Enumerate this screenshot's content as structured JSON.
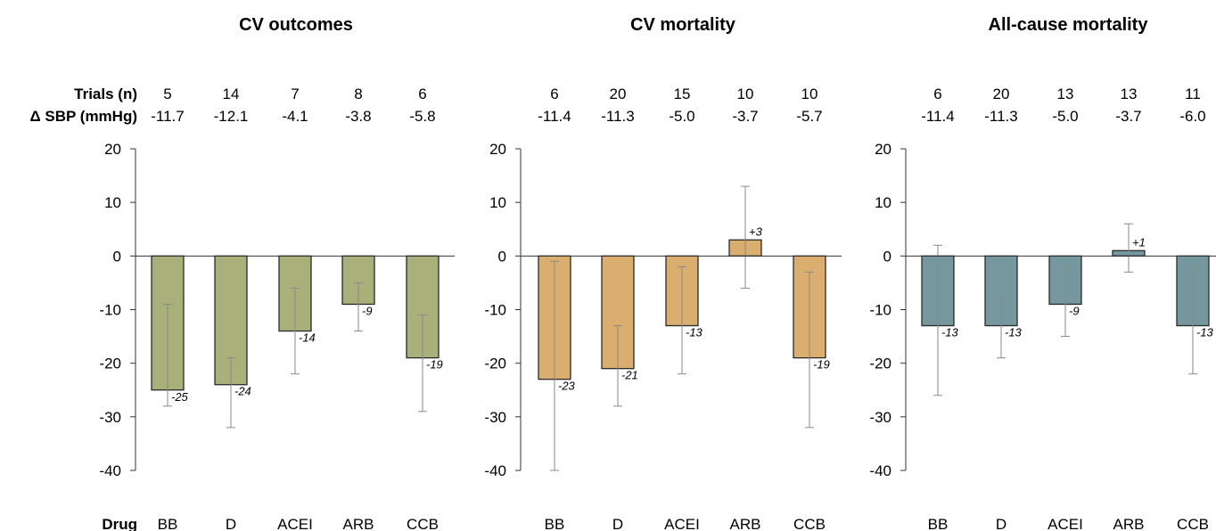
{
  "row_labels": {
    "trials": "Trials (n)",
    "sbp": "Δ SBP (mmHg)",
    "drug": "Drug"
  },
  "chart_data": [
    {
      "type": "bar",
      "title": "CV outcomes",
      "categories": [
        "BB",
        "D",
        "ACEI",
        "ARB",
        "CCB"
      ],
      "trials": [
        "5",
        "14",
        "7",
        "8",
        "6"
      ],
      "delta_sbp": [
        "-11.7",
        "-12.1",
        "-4.1",
        "-3.8",
        "-5.8"
      ],
      "values": [
        -25,
        -24,
        -14,
        -9,
        -19
      ],
      "value_labels": [
        "-25",
        "-24",
        "-14",
        "-9",
        "-19"
      ],
      "ci_low": [
        -28,
        -32,
        -22,
        -14,
        -29
      ],
      "ci_high": [
        -9,
        -19,
        -6,
        -5,
        -11
      ],
      "ylim": [
        -40,
        20
      ],
      "yticks": [
        20,
        10,
        0,
        -10,
        -20,
        -30,
        -40
      ],
      "color": "#a9b07a",
      "grid": false
    },
    {
      "type": "bar",
      "title": "CV mortality",
      "categories": [
        "BB",
        "D",
        "ACEI",
        "ARB",
        "CCB"
      ],
      "trials": [
        "6",
        "20",
        "15",
        "10",
        "10"
      ],
      "delta_sbp": [
        "-11.4",
        "-11.3",
        "-5.0",
        "-3.7",
        "-5.7"
      ],
      "values": [
        -23,
        -21,
        -13,
        3,
        -19
      ],
      "value_labels": [
        "-23",
        "-21",
        "-13",
        "+3",
        "-19"
      ],
      "ci_low": [
        -40,
        -28,
        -22,
        -6,
        -32
      ],
      "ci_high": [
        -1,
        -13,
        -2,
        13,
        -3
      ],
      "ylim": [
        -40,
        20
      ],
      "yticks": [
        20,
        10,
        0,
        -10,
        -20,
        -30,
        -40
      ],
      "color": "#d9ae6e",
      "grid": false
    },
    {
      "type": "bar",
      "title": "All-cause mortality",
      "categories": [
        "BB",
        "D",
        "ACEI",
        "ARB",
        "CCB"
      ],
      "trials": [
        "6",
        "20",
        "13",
        "13",
        "11"
      ],
      "delta_sbp": [
        "-11.4",
        "-11.3",
        "-5.0",
        "-3.7",
        "-6.0"
      ],
      "values": [
        -13,
        -13,
        -9,
        1,
        -13
      ],
      "value_labels": [
        "-13",
        "-13",
        "-9",
        "+1",
        "-13"
      ],
      "ci_low": [
        -26,
        -19,
        -15,
        -3,
        -22
      ],
      "ci_high": [
        2,
        -8,
        -2,
        6,
        -2
      ],
      "ylim": [
        -40,
        20
      ],
      "yticks": [
        20,
        10,
        0,
        -10,
        -20,
        -30,
        -40
      ],
      "color": "#74989e",
      "grid": false
    }
  ]
}
